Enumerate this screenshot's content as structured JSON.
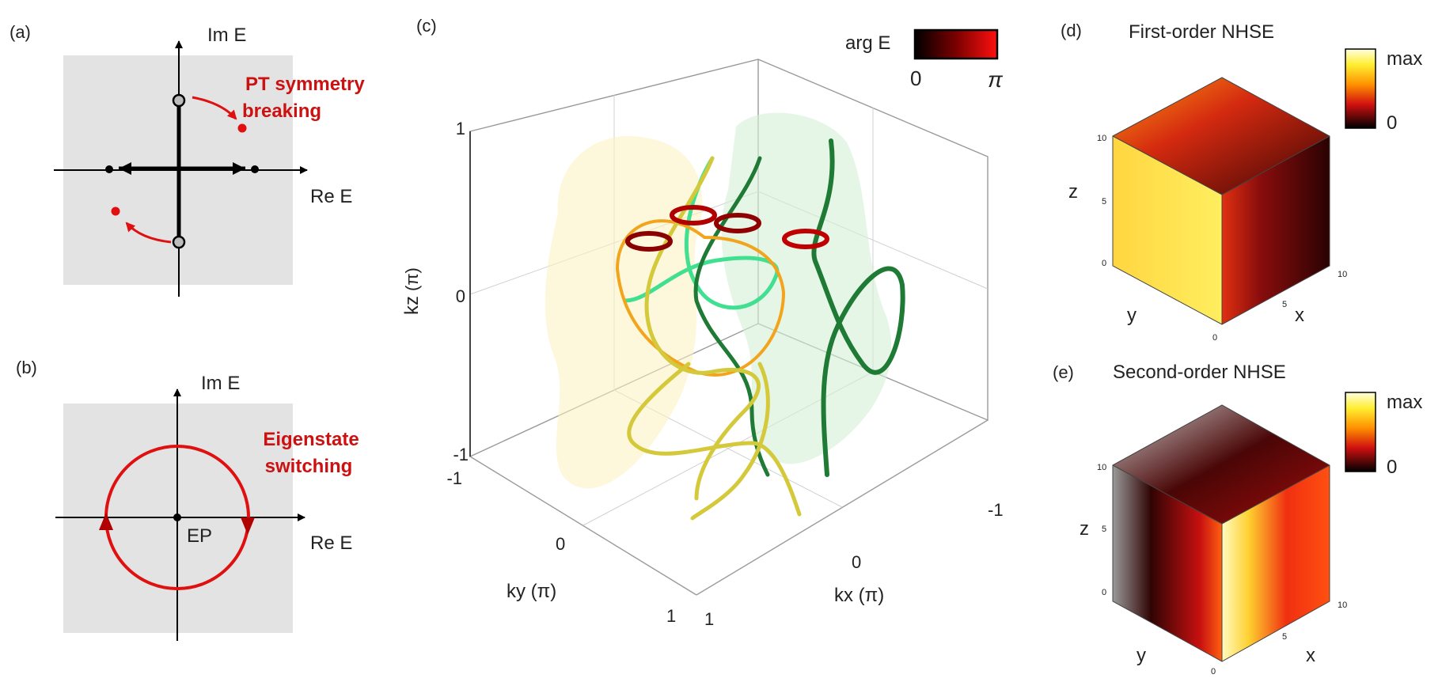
{
  "panel_a": {
    "tag": "(a)",
    "im_axis": "Im E",
    "re_axis": "Re E",
    "annotation_line1": "PT symmetry",
    "annotation_line2": "breaking"
  },
  "panel_b": {
    "tag": "(b)",
    "im_axis": "Im E",
    "re_axis": "Re E",
    "annotation_line1": "Eigenstate",
    "annotation_line2": "switching",
    "ep_label": "EP"
  },
  "panel_c": {
    "tag": "(c)",
    "colorbar_title": "arg E",
    "colorbar_min": "0",
    "colorbar_max": "π",
    "z_label": "kz",
    "y_label": "ky",
    "x_label": "kx",
    "unit": "(π)",
    "z_ticks": [
      "1",
      "0",
      "-1"
    ],
    "y_ticks": [
      "-1",
      "0",
      "1"
    ],
    "x_ticks": [
      "1",
      "0",
      "-1"
    ]
  },
  "panel_d": {
    "tag": "(d)",
    "title": "First-order NHSE",
    "cb_max": "max",
    "cb_min": "0",
    "z_label": "z",
    "y_label": "y",
    "x_label": "x",
    "ticks": [
      "10",
      "5",
      "0"
    ]
  },
  "panel_e": {
    "tag": "(e)",
    "title": "Second-order NHSE",
    "cb_max": "max",
    "cb_min": "0",
    "z_label": "z",
    "y_label": "y",
    "x_label": "x",
    "ticks": [
      "10",
      "5",
      "0"
    ]
  },
  "colors": {
    "accent_red": "#cc1111",
    "panel_bg": "#e3e3e3",
    "yellow_curve": "#d4c93a",
    "orange_curve": "#f2a51c",
    "mint_curve": "#40e090",
    "green_curve": "#1e7a35"
  }
}
